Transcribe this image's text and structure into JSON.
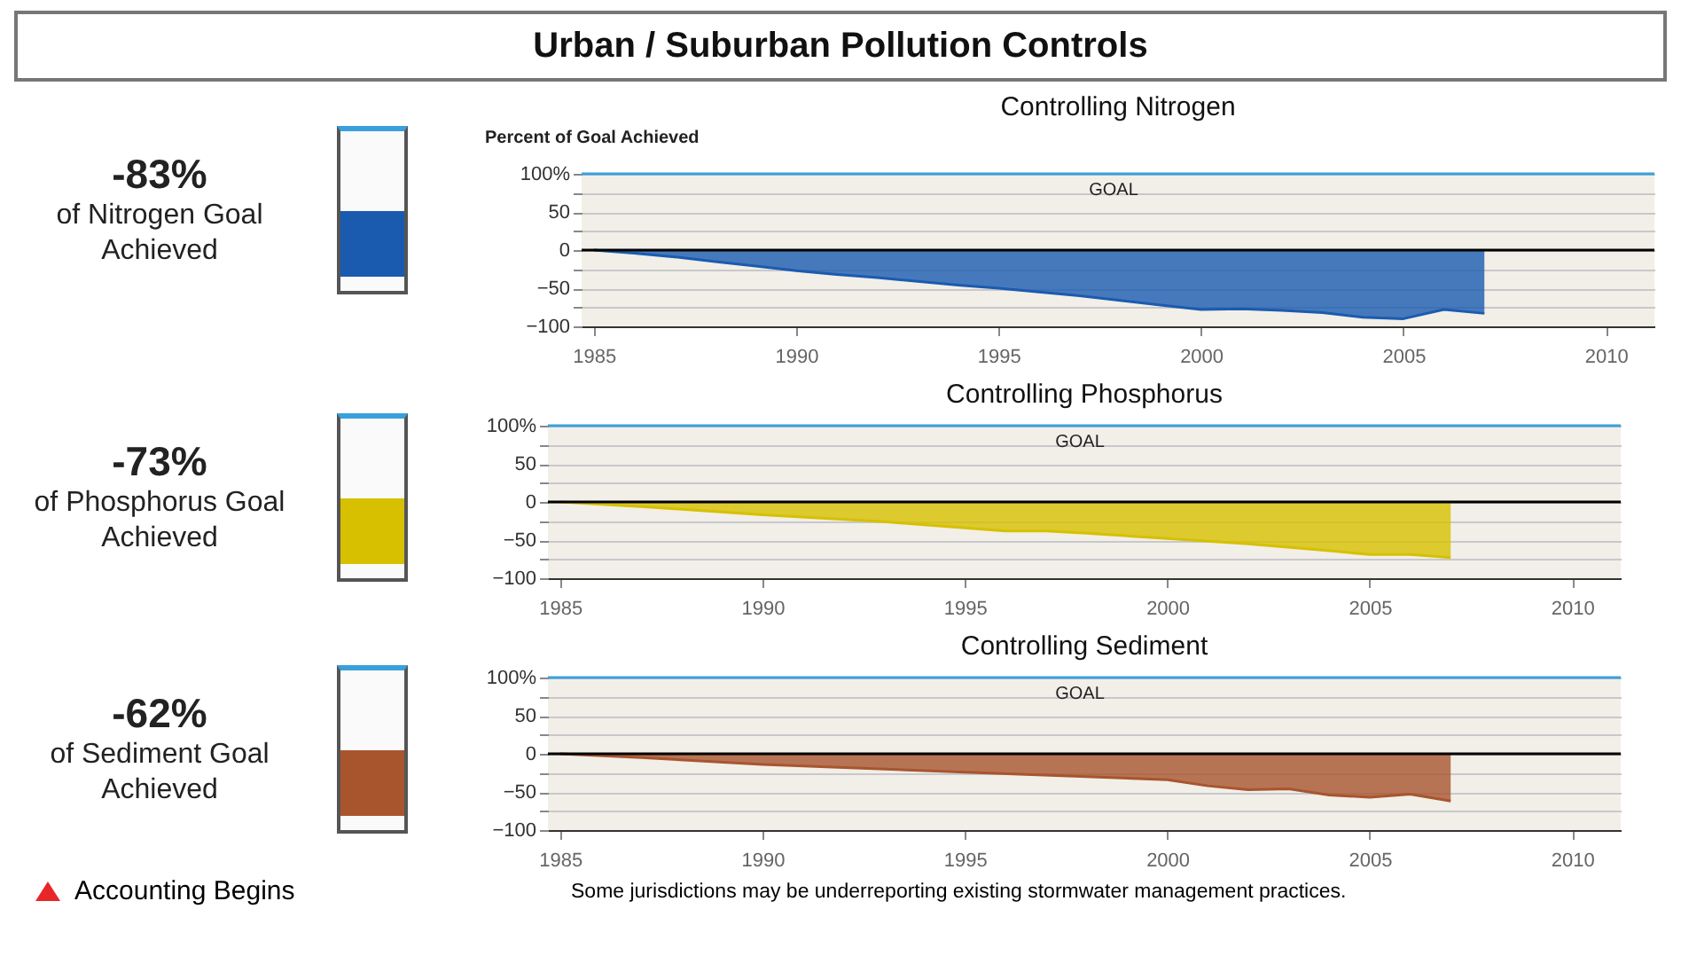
{
  "chart_data": [
    {
      "type": "area",
      "title": "Urban / Suburban Pollution Controls",
      "subtitle": "Controlling Nitrogen",
      "ylabel": "Percent of Goal Achieved",
      "annotations": [
        "-83%",
        "of Nitrogen Goal Achieved"
      ],
      "x": [
        1985,
        1986,
        1987,
        1988,
        1989,
        1990,
        1991,
        1992,
        1993,
        1994,
        1995,
        1996,
        1997,
        1998,
        1999,
        2000,
        2001,
        2002,
        2003,
        2004,
        2005,
        2006,
        2007
      ],
      "series": [
        {
          "color": "#1a5bb0",
          "values": [
            0,
            -4,
            -9,
            -15,
            -21,
            -27,
            -32,
            -36,
            -41,
            -46,
            -50,
            -55,
            -60,
            -66,
            -72,
            -78,
            -77,
            -79,
            -82,
            -88,
            -90,
            -78,
            -83
          ]
        }
      ],
      "xlim": [
        1984.7,
        2011.2
      ],
      "xticks": [
        1985,
        1990,
        1995,
        2000,
        2005,
        2010
      ],
      "ylim": [
        -100,
        100
      ],
      "yticks": [
        {
          "value": 100,
          "label": "100%"
        },
        {
          "value": 75,
          "label": null
        },
        50,
        {
          "value": 25,
          "label": null
        },
        0,
        {
          "value": -25,
          "label": null
        },
        -50,
        {
          "value": -75,
          "label": null
        },
        -100
      ],
      "grid": "y",
      "ref_lines": [
        {
          "axis": "y",
          "value": 100,
          "label": "GOAL",
          "color": "#3aa0dc"
        },
        {
          "axis": "y",
          "value": 0,
          "color": "#000000"
        }
      ]
    },
    {
      "type": "area",
      "title": "Controlling Phosphorus",
      "annotations": [
        "-73%",
        "of Phosphorus Goal Achieved"
      ],
      "x": [
        1985,
        1987,
        1990,
        1993,
        1995,
        1996,
        1997,
        1998,
        2000,
        2002,
        2004,
        2005,
        2006,
        2007
      ],
      "series": [
        {
          "color": "#d6c000",
          "values": [
            0,
            -6,
            -17,
            -26,
            -34,
            -38,
            -38,
            -41,
            -48,
            -55,
            -64,
            -69,
            -69,
            -73
          ]
        }
      ],
      "xlim": [
        1984.7,
        2011.2
      ],
      "xticks": [
        1985,
        1990,
        1995,
        2000,
        2005,
        2010
      ],
      "ylim": [
        -100,
        100
      ],
      "yticks": [
        {
          "value": 100,
          "label": "100%"
        },
        {
          "value": 75,
          "label": null
        },
        50,
        {
          "value": 25,
          "label": null
        },
        0,
        {
          "value": -25,
          "label": null
        },
        -50,
        {
          "value": -75,
          "label": null
        },
        -100
      ],
      "grid": "y",
      "ref_lines": [
        {
          "axis": "y",
          "value": 100,
          "label": "GOAL",
          "color": "#3aa0dc"
        },
        {
          "axis": "y",
          "value": 0,
          "color": "#000000"
        }
      ]
    },
    {
      "type": "area",
      "title": "Controlling Sediment",
      "annotations": [
        "-62%",
        "of Sediment Goal Achieved",
        "Accounting Begins",
        "Some jurisdictions may be underreporting existing stormwater management practices."
      ],
      "x": [
        1985,
        1987,
        1990,
        1995,
        1998,
        2000,
        2001,
        2002,
        2003,
        2004,
        2005,
        2006,
        2007
      ],
      "series": [
        {
          "color": "#a8552e",
          "values": [
            0,
            -5,
            -14,
            -24,
            -30,
            -34,
            -42,
            -47,
            -46,
            -54,
            -57,
            -53,
            -62
          ]
        }
      ],
      "xlim": [
        1984.7,
        2011.2
      ],
      "xticks": [
        1985,
        1990,
        1995,
        2000,
        2005,
        2010
      ],
      "ylim": [
        -100,
        100
      ],
      "yticks": [
        {
          "value": 100,
          "label": "100%"
        },
        {
          "value": 75,
          "label": null
        },
        50,
        {
          "value": 25,
          "label": null
        },
        0,
        {
          "value": -25,
          "label": null
        },
        -50,
        {
          "value": -75,
          "label": null
        },
        -100
      ],
      "grid": "y",
      "ref_lines": [
        {
          "axis": "y",
          "value": 100,
          "label": "GOAL",
          "color": "#3aa0dc"
        },
        {
          "axis": "y",
          "value": 0,
          "color": "#000000"
        }
      ]
    }
  ]
}
